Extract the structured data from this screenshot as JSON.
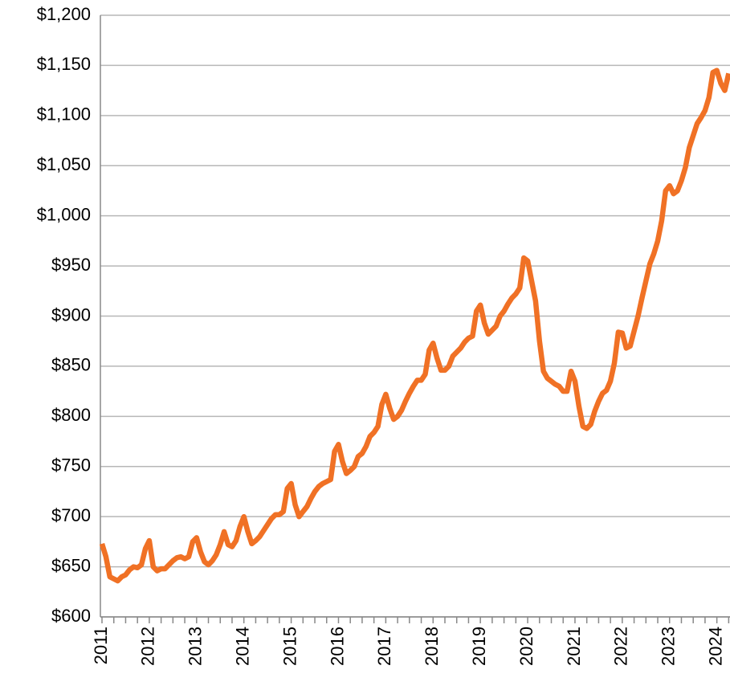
{
  "chart_data": {
    "type": "line",
    "categories": [
      "2011",
      null,
      null,
      null,
      null,
      null,
      null,
      null,
      null,
      null,
      null,
      null,
      "2012",
      null,
      null,
      null,
      null,
      null,
      null,
      null,
      null,
      null,
      null,
      null,
      "2013",
      null,
      null,
      null,
      null,
      null,
      null,
      null,
      null,
      null,
      null,
      null,
      "2014",
      null,
      null,
      null,
      null,
      null,
      null,
      null,
      null,
      null,
      null,
      null,
      "2015",
      null,
      null,
      null,
      null,
      null,
      null,
      null,
      null,
      null,
      null,
      null,
      "2016",
      null,
      null,
      null,
      null,
      null,
      null,
      null,
      null,
      null,
      null,
      null,
      "2017",
      null,
      null,
      null,
      null,
      null,
      null,
      null,
      null,
      null,
      null,
      null,
      "2018",
      null,
      null,
      null,
      null,
      null,
      null,
      null,
      null,
      null,
      null,
      null,
      "2019",
      null,
      null,
      null,
      null,
      null,
      null,
      null,
      null,
      null,
      null,
      null,
      "2020",
      null,
      null,
      null,
      null,
      null,
      null,
      null,
      null,
      null,
      null,
      null,
      "2021",
      null,
      null,
      null,
      null,
      null,
      null,
      null,
      null,
      null,
      null,
      null,
      "2022",
      null,
      null,
      null,
      null,
      null,
      null,
      null,
      null,
      null,
      null,
      null,
      "2023",
      null,
      null,
      null,
      null,
      null,
      null,
      null,
      null,
      null,
      null,
      null,
      "2024",
      null,
      null,
      null
    ],
    "series": [
      {
        "color": "#f07125",
        "values": [
          673,
          660,
          640,
          638,
          636,
          640,
          642,
          647,
          650,
          649,
          652,
          668,
          676,
          650,
          646,
          648,
          648,
          652,
          656,
          659,
          660,
          658,
          660,
          675,
          679,
          665,
          655,
          652,
          656,
          662,
          672,
          685,
          672,
          670,
          676,
          690,
          700,
          685,
          673,
          676,
          680,
          686,
          692,
          698,
          702,
          702,
          705,
          728,
          733,
          712,
          700,
          705,
          710,
          718,
          725,
          730,
          733,
          735,
          737,
          765,
          772,
          755,
          743,
          746,
          750,
          760,
          763,
          770,
          780,
          784,
          790,
          812,
          822,
          808,
          797,
          800,
          806,
          815,
          823,
          830,
          836,
          836,
          842,
          866,
          873,
          858,
          846,
          846,
          850,
          860,
          864,
          868,
          874,
          878,
          880,
          905,
          911,
          893,
          882,
          886,
          890,
          900,
          905,
          912,
          918,
          922,
          928,
          958,
          955,
          935,
          915,
          875,
          845,
          838,
          835,
          832,
          830,
          825,
          825,
          845,
          835,
          810,
          790,
          788,
          792,
          805,
          815,
          823,
          826,
          835,
          853,
          884,
          883,
          868,
          870,
          885,
          900,
          918,
          935,
          952,
          962,
          975,
          995,
          1025,
          1030,
          1022,
          1025,
          1035,
          1048,
          1068,
          1080,
          1092,
          1098,
          1105,
          1118,
          1143,
          1145,
          1132,
          1125,
          1142
        ]
      }
    ],
    "ylim": [
      600,
      1200
    ],
    "yticks": [
      {
        "value": 600,
        "label": "$600"
      },
      {
        "value": 650,
        "label": "$650"
      },
      {
        "value": 700,
        "label": "$700"
      },
      {
        "value": 750,
        "label": "$750"
      },
      {
        "value": 800,
        "label": "$800"
      },
      {
        "value": 850,
        "label": "$850"
      },
      {
        "value": 900,
        "label": "$900"
      },
      {
        "value": 950,
        "label": "$950"
      },
      {
        "value": 1000,
        "label": "$1,000"
      },
      {
        "value": 1050,
        "label": "$1,050"
      },
      {
        "value": 1100,
        "label": "$1,100"
      },
      {
        "value": 1150,
        "label": "$1,150"
      },
      {
        "value": 1200,
        "label": "$1,200"
      }
    ],
    "grid": true
  }
}
